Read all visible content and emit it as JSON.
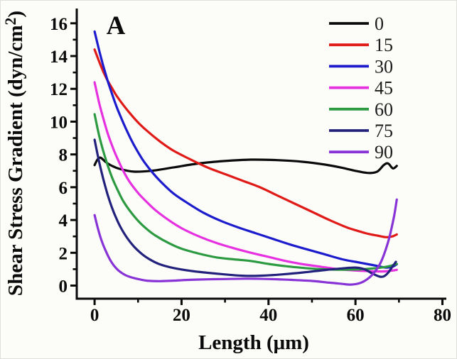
{
  "chart_data": {
    "type": "line",
    "panel_label": "A",
    "xlabel": "Length (μm)",
    "ylabel": "Shear Stress Gradient (dyn/cm²)",
    "xlim": [
      -4.1,
      80.9
    ],
    "ylim": [
      -0.8,
      16.9
    ],
    "x_major_ticks": [
      0,
      20,
      40,
      60,
      80
    ],
    "x_minor_ticks": [
      10,
      30,
      50,
      70
    ],
    "y_major_ticks": [
      0,
      2,
      4,
      6,
      8,
      10,
      12,
      14,
      16
    ],
    "y_minor_ticks": [
      1,
      3,
      5,
      7,
      9,
      11,
      13,
      15
    ],
    "grid": false,
    "legend_position": "top-right",
    "axis_color": "#0a0a0a",
    "background_color": "#fcfcf9",
    "border_color": "#dfdfdb",
    "series": [
      {
        "name": "0",
        "color": "#0a0a0a",
        "points": [
          [
            0,
            7.35
          ],
          [
            0.7,
            7.7
          ],
          [
            1.4,
            7.8
          ],
          [
            2.5,
            7.55
          ],
          [
            4,
            7.3
          ],
          [
            6,
            7.1
          ],
          [
            9,
            6.95
          ],
          [
            13,
            7.0
          ],
          [
            18,
            7.2
          ],
          [
            24,
            7.45
          ],
          [
            30,
            7.6
          ],
          [
            36,
            7.68
          ],
          [
            42,
            7.65
          ],
          [
            48,
            7.55
          ],
          [
            53,
            7.38
          ],
          [
            57,
            7.18
          ],
          [
            60,
            7.0
          ],
          [
            63,
            6.87
          ],
          [
            65,
            6.95
          ],
          [
            66.5,
            7.35
          ],
          [
            67.5,
            7.45
          ],
          [
            68.6,
            7.15
          ],
          [
            69.5,
            7.3
          ]
        ]
      },
      {
        "name": "15",
        "color": "#e01b17",
        "points": [
          [
            0,
            14.4
          ],
          [
            1,
            13.7
          ],
          [
            2,
            13.05
          ],
          [
            3,
            12.5
          ],
          [
            4,
            12.05
          ],
          [
            5,
            11.6
          ],
          [
            6.5,
            11.05
          ],
          [
            8,
            10.55
          ],
          [
            10,
            9.95
          ],
          [
            12,
            9.45
          ],
          [
            15,
            8.8
          ],
          [
            18,
            8.25
          ],
          [
            22,
            7.7
          ],
          [
            26,
            7.2
          ],
          [
            30,
            6.8
          ],
          [
            34,
            6.4
          ],
          [
            38,
            6.0
          ],
          [
            42,
            5.5
          ],
          [
            46,
            5.0
          ],
          [
            50,
            4.5
          ],
          [
            54,
            4.0
          ],
          [
            58,
            3.55
          ],
          [
            61,
            3.3
          ],
          [
            63,
            3.15
          ],
          [
            65,
            3.05
          ],
          [
            67,
            2.95
          ],
          [
            68.5,
            3.0
          ],
          [
            69.5,
            3.12
          ]
        ]
      },
      {
        "name": "30",
        "color": "#1c1ccd",
        "points": [
          [
            0,
            15.5
          ],
          [
            1,
            14.4
          ],
          [
            2,
            13.4
          ],
          [
            3,
            12.5
          ],
          [
            4,
            11.7
          ],
          [
            5,
            10.95
          ],
          [
            6,
            10.3
          ],
          [
            7.5,
            9.4
          ],
          [
            9,
            8.6
          ],
          [
            11,
            7.7
          ],
          [
            13,
            7.0
          ],
          [
            15,
            6.4
          ],
          [
            18,
            5.65
          ],
          [
            21,
            5.1
          ],
          [
            25,
            4.45
          ],
          [
            29,
            3.95
          ],
          [
            33,
            3.55
          ],
          [
            37,
            3.2
          ],
          [
            41,
            2.85
          ],
          [
            45,
            2.5
          ],
          [
            49,
            2.2
          ],
          [
            53,
            1.9
          ],
          [
            57,
            1.6
          ],
          [
            60,
            1.45
          ],
          [
            63,
            1.3
          ],
          [
            65,
            1.2
          ],
          [
            67,
            1.1
          ],
          [
            68.5,
            1.15
          ],
          [
            69.5,
            1.3
          ]
        ]
      },
      {
        "name": "45",
        "color": "#e531e0",
        "points": [
          [
            0,
            12.4
          ],
          [
            1,
            11.2
          ],
          [
            2,
            10.2
          ],
          [
            3,
            9.3
          ],
          [
            4,
            8.55
          ],
          [
            5,
            7.9
          ],
          [
            6.5,
            7.05
          ],
          [
            8,
            6.35
          ],
          [
            10,
            5.65
          ],
          [
            12,
            5.1
          ],
          [
            14,
            4.6
          ],
          [
            17,
            4.0
          ],
          [
            20,
            3.5
          ],
          [
            24,
            3.0
          ],
          [
            28,
            2.6
          ],
          [
            32,
            2.28
          ],
          [
            36,
            2.0
          ],
          [
            40,
            1.75
          ],
          [
            44,
            1.5
          ],
          [
            48,
            1.3
          ],
          [
            52,
            1.15
          ],
          [
            56,
            1.0
          ],
          [
            60,
            0.92
          ],
          [
            63,
            0.88
          ],
          [
            66,
            0.86
          ],
          [
            68,
            0.9
          ],
          [
            69.5,
            0.96
          ]
        ]
      },
      {
        "name": "60",
        "color": "#2c9a40",
        "points": [
          [
            0,
            10.45
          ],
          [
            1,
            9.2
          ],
          [
            2,
            8.2
          ],
          [
            3,
            7.35
          ],
          [
            4,
            6.6
          ],
          [
            5,
            6.0
          ],
          [
            6.5,
            5.2
          ],
          [
            8,
            4.6
          ],
          [
            10,
            3.95
          ],
          [
            12,
            3.45
          ],
          [
            14,
            3.05
          ],
          [
            17,
            2.6
          ],
          [
            20,
            2.25
          ],
          [
            24,
            1.95
          ],
          [
            28,
            1.72
          ],
          [
            32,
            1.6
          ],
          [
            36,
            1.5
          ],
          [
            40,
            1.32
          ],
          [
            44,
            1.18
          ],
          [
            48,
            1.08
          ],
          [
            52,
            1.0
          ],
          [
            56,
            0.97
          ],
          [
            60,
            0.98
          ],
          [
            63,
            1.02
          ],
          [
            66,
            1.1
          ],
          [
            68,
            1.2
          ],
          [
            69.5,
            1.32
          ]
        ]
      },
      {
        "name": "75",
        "color": "#22227d",
        "points": [
          [
            0,
            8.9
          ],
          [
            1,
            7.6
          ],
          [
            2,
            6.5
          ],
          [
            3,
            5.55
          ],
          [
            4,
            4.75
          ],
          [
            5,
            4.1
          ],
          [
            6,
            3.55
          ],
          [
            7.5,
            2.9
          ],
          [
            9,
            2.4
          ],
          [
            11,
            1.9
          ],
          [
            13,
            1.55
          ],
          [
            15,
            1.3
          ],
          [
            18,
            1.08
          ],
          [
            22,
            0.9
          ],
          [
            26,
            0.78
          ],
          [
            30,
            0.68
          ],
          [
            34,
            0.6
          ],
          [
            38,
            0.6
          ],
          [
            43,
            0.68
          ],
          [
            48,
            0.8
          ],
          [
            53,
            0.95
          ],
          [
            57,
            1.05
          ],
          [
            60,
            1.1
          ],
          [
            62,
            1.0
          ],
          [
            64,
            0.72
          ],
          [
            65.5,
            0.55
          ],
          [
            66.5,
            0.56
          ],
          [
            67.5,
            0.78
          ],
          [
            68.5,
            1.15
          ],
          [
            69.3,
            1.45
          ]
        ]
      },
      {
        "name": "90",
        "color": "#8833d6",
        "points": [
          [
            0,
            4.3
          ],
          [
            0.8,
            3.45
          ],
          [
            1.6,
            2.75
          ],
          [
            2.5,
            2.15
          ],
          [
            3.5,
            1.6
          ],
          [
            4.5,
            1.2
          ],
          [
            5.5,
            0.92
          ],
          [
            7,
            0.65
          ],
          [
            8.5,
            0.5
          ],
          [
            10,
            0.4
          ],
          [
            12,
            0.3
          ],
          [
            15,
            0.27
          ],
          [
            18,
            0.3
          ],
          [
            22,
            0.35
          ],
          [
            26,
            0.38
          ],
          [
            30,
            0.4
          ],
          [
            35,
            0.42
          ],
          [
            40,
            0.4
          ],
          [
            45,
            0.35
          ],
          [
            50,
            0.28
          ],
          [
            54,
            0.18
          ],
          [
            57,
            0.1
          ],
          [
            59,
            0.06
          ],
          [
            61,
            0.15
          ],
          [
            62.5,
            0.35
          ],
          [
            64,
            0.7
          ],
          [
            65.5,
            1.25
          ],
          [
            66.5,
            1.85
          ],
          [
            67.5,
            2.65
          ],
          [
            68.3,
            3.5
          ],
          [
            69,
            4.4
          ],
          [
            69.5,
            5.25
          ]
        ]
      }
    ]
  }
}
